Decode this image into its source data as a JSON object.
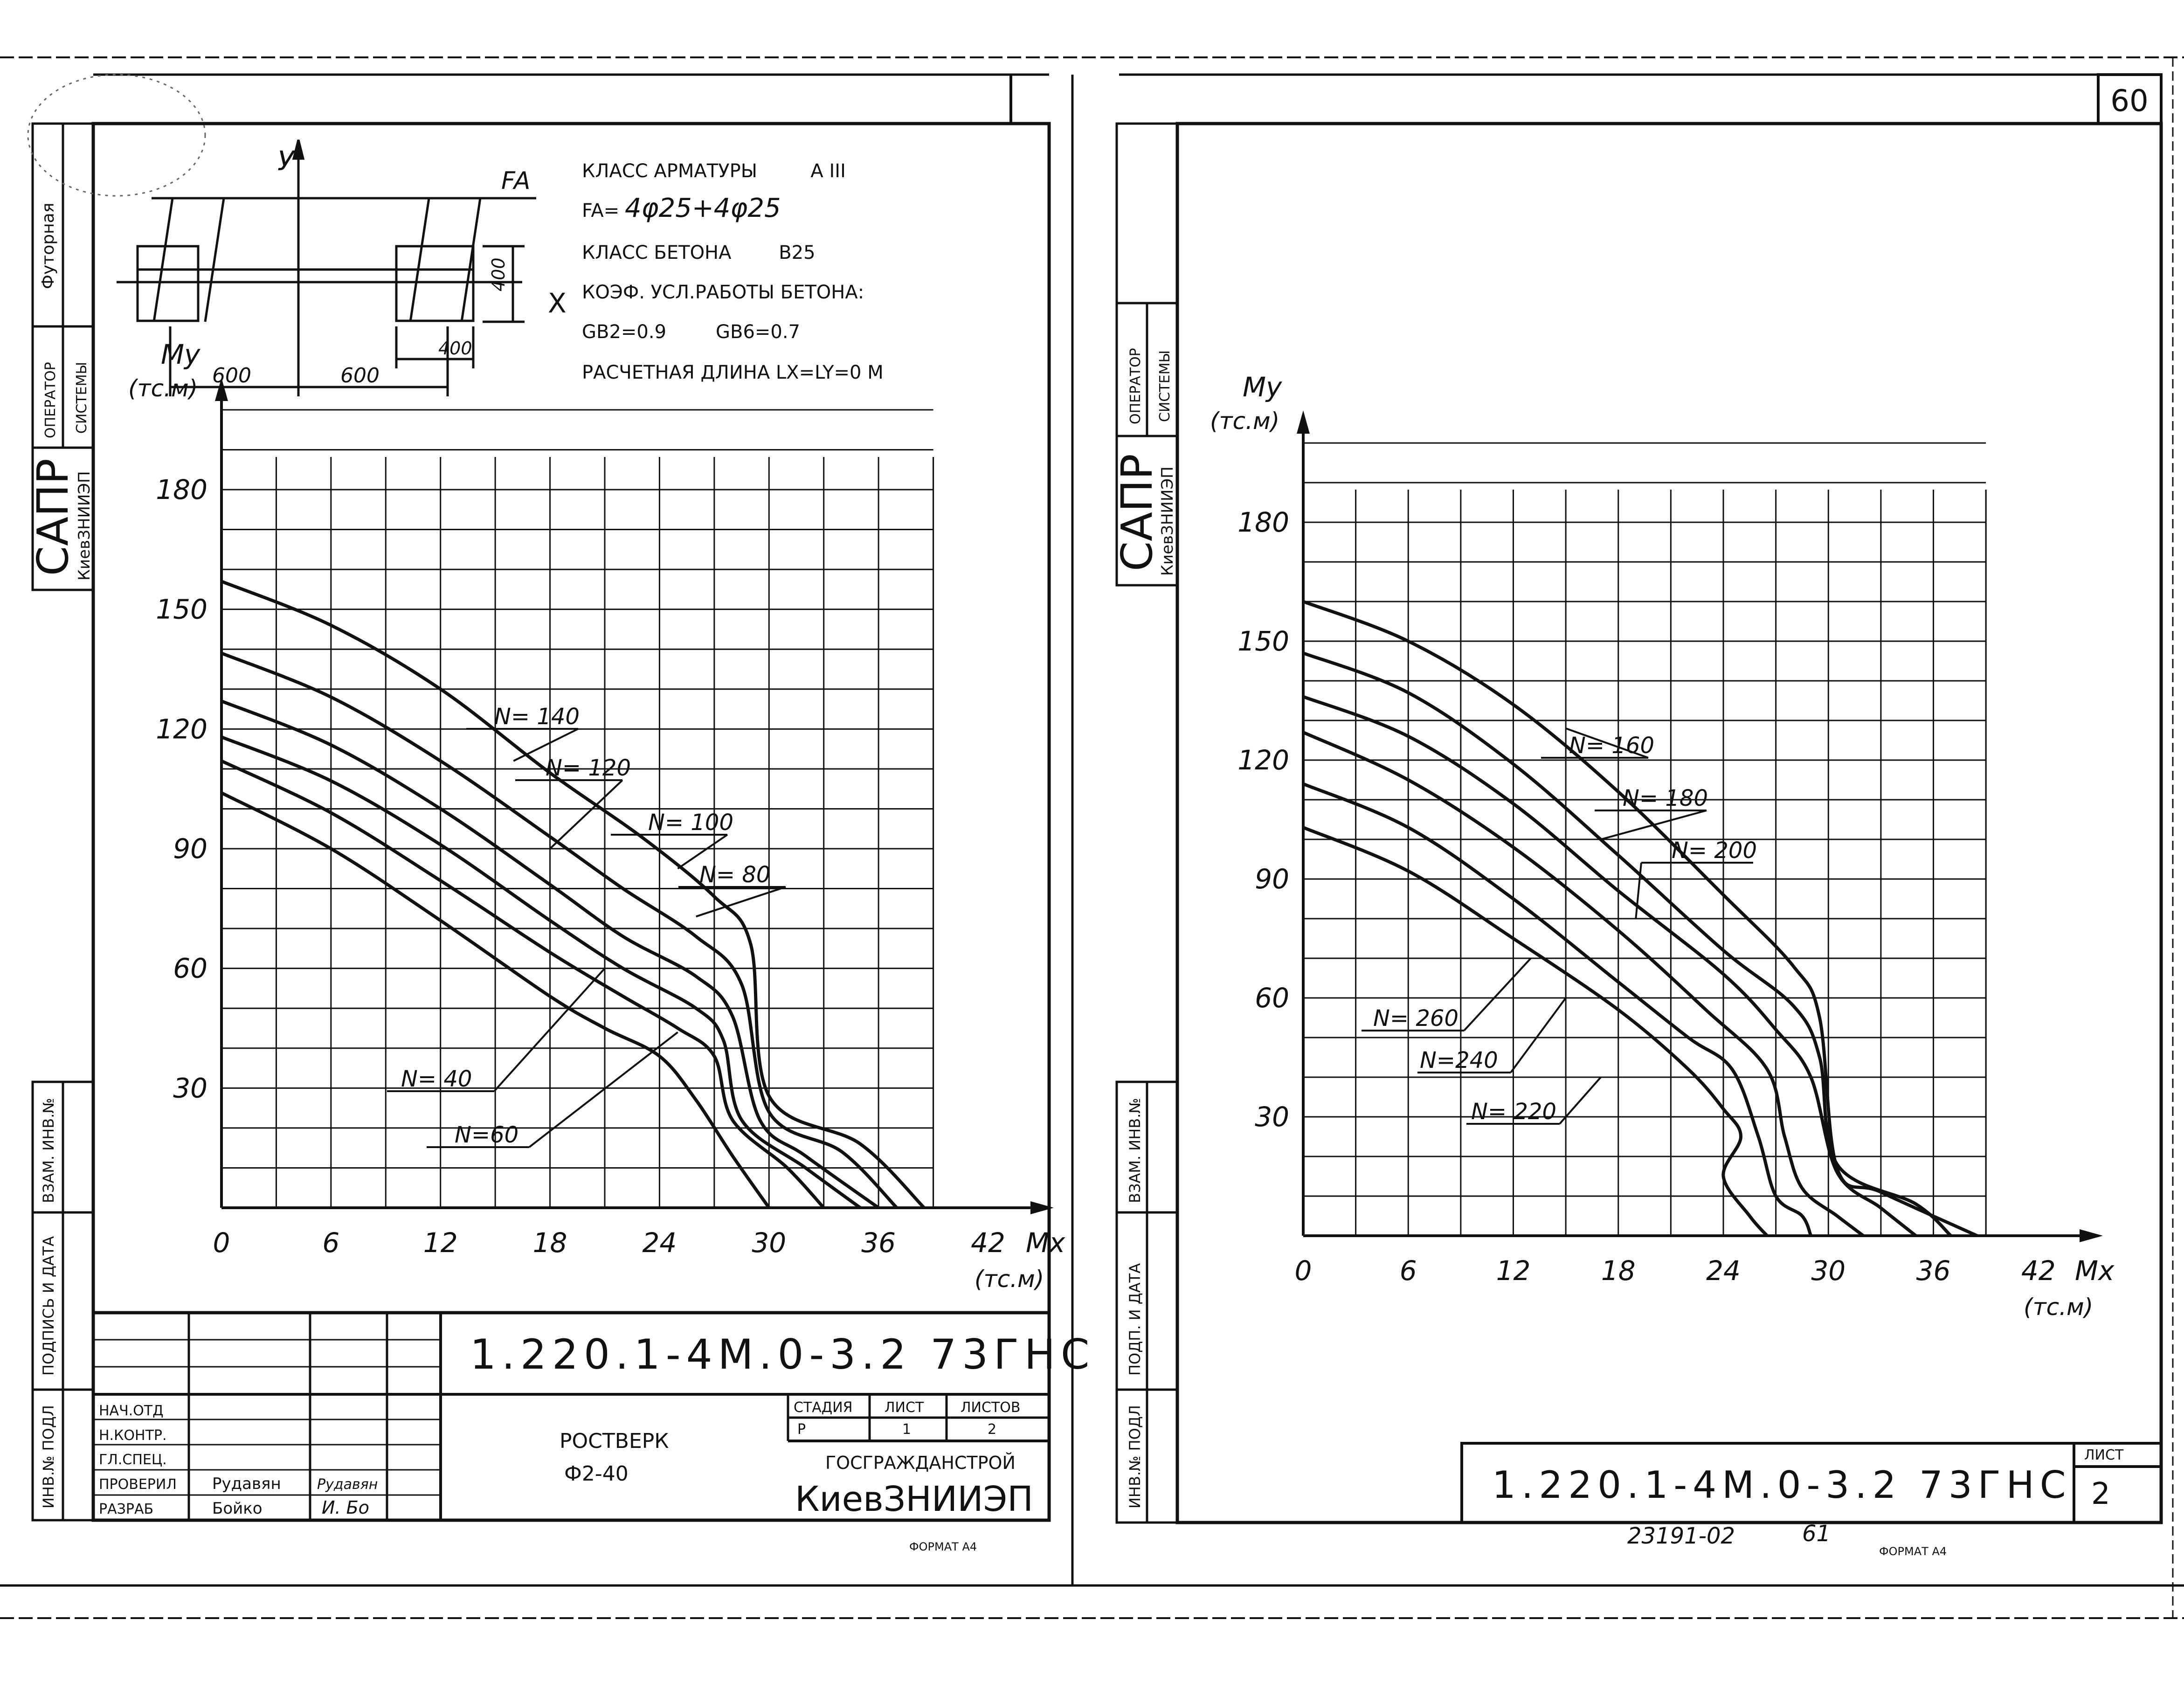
{
  "sheet_number_top": "60",
  "side_stamp": {
    "lining": "Футорная",
    "operator": [
      "ОПЕРАТОР",
      "СИСТЕМЫ"
    ],
    "sapr": "САПР",
    "org": "КиевЗНИИЭП",
    "left_columns": [
      "ИНВ.№ ПОДЛ",
      "ПОДПИСЬ И ДАТА",
      "ВЗАМ. ИНВ.№"
    ],
    "right_columns": [
      "ИНВ.№ ПОДЛ",
      "ПОДП. И ДАТА",
      "ВЗАМ. ИНВ.№"
    ]
  },
  "section": {
    "y_axis": "У",
    "x_axis": "Х",
    "reinforcement_label": "FA",
    "dims": {
      "height": "400",
      "offset": "400",
      "half_left": "600",
      "half_right": "600"
    }
  },
  "specs": {
    "line1": "КЛАСС АРМАТУРЫ         А III",
    "line2_prefix": "FA=",
    "line2_value": "4φ25+4φ25",
    "line3": "КЛАСС БЕТОНА        В25",
    "line4": "КОЭФ. УСЛ.РАБОТЫ БЕТОНА:",
    "line5a": "GB2=0.9",
    "line5b": "GB6=0.7",
    "line6": "РАСЧЕТНАЯ ДЛИНА LX=LY=0 M"
  },
  "chart_data": [
    {
      "type": "line",
      "ylabel": "Мy",
      "yunit": "(тс.м)",
      "xlabel": "Мx",
      "xunit": "(тс.м)",
      "xlim": [
        0,
        42
      ],
      "ylim": [
        0,
        180
      ],
      "xticks": [
        "0",
        "6",
        "12",
        "18",
        "24",
        "30",
        "36",
        "42"
      ],
      "yticks": [
        "30",
        "60",
        "90",
        "120",
        "150",
        "180"
      ],
      "grid": true,
      "series": [
        {
          "name": "N= 40",
          "x": [
            0,
            6,
            12,
            18,
            21,
            24,
            26,
            28,
            30
          ],
          "y": [
            104,
            90,
            72,
            53,
            45,
            38,
            27,
            13,
            0
          ]
        },
        {
          "name": "N=60",
          "x": [
            0,
            6,
            12,
            18,
            22,
            25,
            27,
            28,
            31,
            33
          ],
          "y": [
            112,
            99,
            82,
            64,
            53,
            45,
            38,
            22,
            10,
            0
          ]
        },
        {
          "name": "N= 80",
          "x": [
            0,
            6,
            12,
            18,
            22,
            26,
            27.5,
            28.5,
            32,
            35
          ],
          "y": [
            118,
            107,
            91,
            72,
            60,
            50,
            42,
            22,
            10,
            0
          ]
        },
        {
          "name": "N= 100",
          "x": [
            0,
            6,
            12,
            18,
            22,
            26,
            28,
            29.5,
            32,
            36
          ],
          "y": [
            127,
            116,
            100,
            81,
            68,
            58,
            48,
            22,
            13,
            0
          ]
        },
        {
          "name": "N= 120",
          "x": [
            0,
            6,
            12,
            18,
            22,
            26,
            28.5,
            30,
            34,
            37
          ],
          "y": [
            139,
            128,
            112,
            93,
            80,
            68,
            56,
            24,
            14,
            0
          ]
        },
        {
          "name": "N= 140",
          "x": [
            0,
            6,
            12,
            18,
            23,
            27,
            29,
            30,
            35,
            38.5
          ],
          "y": [
            157,
            146,
            130,
            109,
            93,
            78,
            66,
            28,
            16,
            0
          ]
        }
      ]
    },
    {
      "type": "line",
      "ylabel": "Мy",
      "yunit": "(тс.м)",
      "xlabel": "Мx",
      "xunit": "(тс.м)",
      "xlim": [
        0,
        42
      ],
      "ylim": [
        0,
        180
      ],
      "xticks": [
        "0",
        "6",
        "12",
        "18",
        "24",
        "30",
        "36",
        "42"
      ],
      "yticks": [
        "30",
        "60",
        "90",
        "120",
        "150",
        "180"
      ],
      "grid": true,
      "series": [
        {
          "name": "N= 160",
          "x": [
            0,
            6,
            12,
            18,
            24,
            28,
            29.5,
            30.5,
            33,
            38.5
          ],
          "y": [
            160,
            150,
            134,
            112,
            86,
            68,
            55,
            17,
            11,
            0
          ]
        },
        {
          "name": "N= 180",
          "x": [
            0,
            6,
            12,
            18,
            24,
            28,
            29.5,
            30.5,
            35,
            37
          ],
          "y": [
            147,
            137,
            119,
            96,
            72,
            58,
            45,
            18,
            8,
            0
          ]
        },
        {
          "name": "N= 200",
          "x": [
            0,
            6,
            12,
            18,
            24,
            27,
            29,
            30.5,
            33,
            35
          ],
          "y": [
            136,
            126,
            109,
            87,
            66,
            52,
            40,
            16,
            7,
            0
          ]
        },
        {
          "name": "N= 220",
          "x": [
            0,
            6,
            12,
            18,
            23,
            26.5,
            27.5,
            28.5,
            30.5,
            32
          ],
          "y": [
            127,
            115,
            98,
            77,
            57,
            42,
            25,
            12,
            5,
            0
          ]
        },
        {
          "name": "N=240",
          "x": [
            0,
            6,
            12,
            18,
            22,
            24.5,
            26,
            27,
            28.5,
            29
          ],
          "y": [
            114,
            103,
            85,
            64,
            50,
            42,
            25,
            10,
            5,
            0
          ]
        },
        {
          "name": "N= 260",
          "x": [
            0,
            6,
            12,
            18,
            22,
            24,
            25,
            24,
            25.5,
            26.5
          ],
          "y": [
            103,
            92,
            75,
            57,
            42,
            32,
            25,
            15,
            5,
            0
          ]
        }
      ]
    }
  ],
  "title_block": {
    "code": "1.220.1-4М.0-3.2 73ГНС",
    "roles": [
      "НАЧ.ОТД",
      "Н.КОНТР.",
      "ГЛ.СПЕЦ.",
      "ПРОВЕРИЛ",
      "РАЗРАБ"
    ],
    "checked_by": "Рудавян",
    "developed_by": "Бойко",
    "sign_checked": "Рудавян",
    "sign_developed": "И. Бо",
    "object_name_line1": "РОСТВЕРК",
    "object_name_line2": "Ф2-40",
    "stage_header": "СТАДИЯ",
    "sheet_header": "ЛИСТ",
    "sheets_header": "ЛИСТОВ",
    "stage": "Р",
    "sheet": "1",
    "sheets": "2",
    "org_line1": "ГОСГРАЖДАНСТРОЙ",
    "org_line2": "КиевЗНИИЭП"
  },
  "right_title": {
    "code": "1.220.1-4М.0-3.2 73ГНС",
    "sheet_header": "ЛИСТ",
    "sheet": "2"
  },
  "format_label": "ФОРМАТ А4",
  "archive_number": "23191-02",
  "archive_page": "61"
}
